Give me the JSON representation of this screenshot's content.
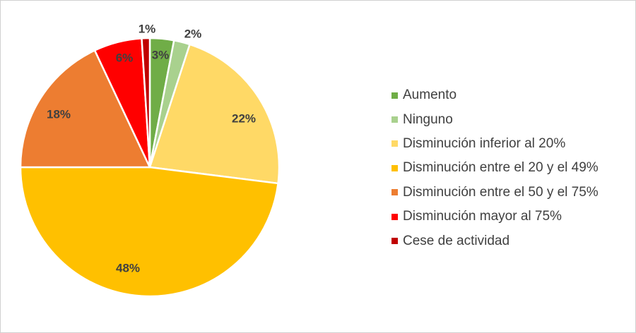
{
  "chart_data": {
    "type": "pie",
    "title": "",
    "start_angle_deg": 90,
    "direction": "clockwise",
    "legend_position": "right",
    "slices": [
      {
        "label": "Aumento",
        "value": 3,
        "display": "3%",
        "color": "#70AD47"
      },
      {
        "label": "Ninguno",
        "value": 2,
        "display": "2%",
        "color": "#A9D18E"
      },
      {
        "label": "Disminución inferior al 20%",
        "value": 22,
        "display": "22%",
        "color": "#FFD966"
      },
      {
        "label": "Disminución entre el 20 y el 49%",
        "value": 48,
        "display": "48%",
        "color": "#FFC000"
      },
      {
        "label": "Disminución entre el 50 y el 75%",
        "value": 18,
        "display": "18%",
        "color": "#ED7D31"
      },
      {
        "label": "Disminución mayor al 75%",
        "value": 6,
        "display": "6%",
        "color": "#FF0000"
      },
      {
        "label": "Cese de actividad",
        "value": 1,
        "display": "1%",
        "color": "#C00000"
      }
    ]
  }
}
